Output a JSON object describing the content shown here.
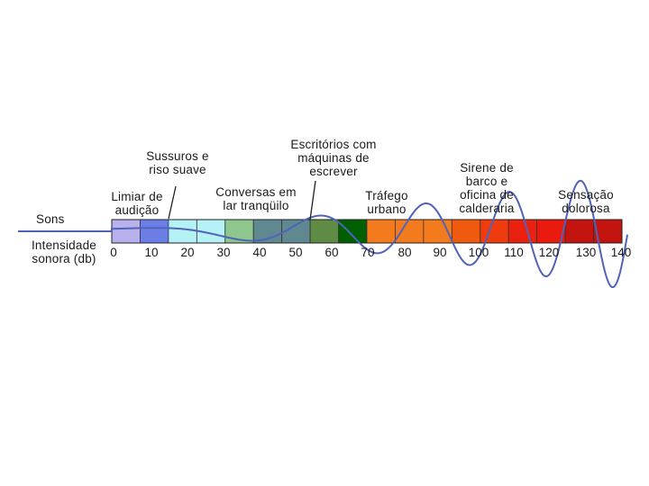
{
  "diagram": {
    "row_labels": {
      "sounds": "Sons",
      "intensity": "Intensidade\nsonora (db)"
    },
    "scale": {
      "min": 0,
      "max": 140,
      "unit": "db",
      "ticks": [
        "0",
        "10",
        "20",
        "30",
        "40",
        "50",
        "60",
        "70",
        "80",
        "90",
        "100",
        "110",
        "120",
        "130",
        "140"
      ],
      "band_colors": [
        "#b9b0ee",
        "#6b7ee8",
        "#b4f2f6",
        "#b4f2f6",
        "#8dc78d",
        "#5f8890",
        "#5f8890",
        "#5f8c45",
        "#005f00",
        "#f47a1e",
        "#f47a1e",
        "#f47a1e",
        "#f05a0e",
        "#ef3b0e",
        "#ec200e",
        "#ea1a0e",
        "#c41410",
        "#c41410"
      ]
    },
    "annotations": [
      {
        "id": "limiar",
        "text": "Limiar de\naudição"
      },
      {
        "id": "sussurros",
        "text": "Sussuros e\nriso suave"
      },
      {
        "id": "conversas",
        "text": "Conversas em\nlar tranqüilo"
      },
      {
        "id": "escritorios",
        "text": "Escritórios com\nmáquinas de\nescrever"
      },
      {
        "id": "trafego",
        "text": "Tráfego\nurbano"
      },
      {
        "id": "sirene",
        "text": "Sirene de\nbarco e\noficina de\ncalderaria"
      },
      {
        "id": "sensacao",
        "text": "Sensação\ndolorosa"
      }
    ],
    "wave_color": "#4f63b8"
  }
}
